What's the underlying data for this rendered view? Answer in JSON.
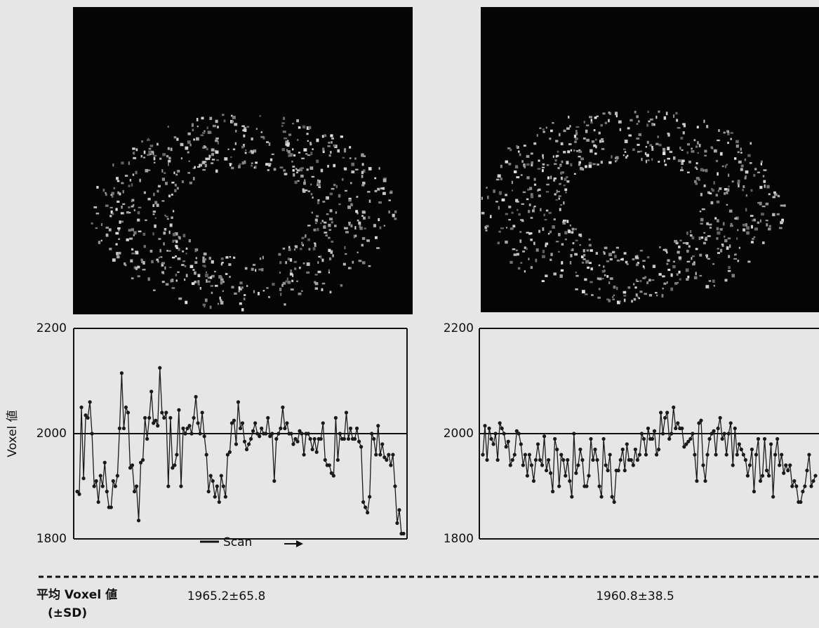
{
  "chart_data": [
    {
      "type": "line",
      "y_label": "Voxel 値",
      "x_label": "Scan",
      "annotation": "1965.2±65.8",
      "ylim": [
        1800,
        2200
      ],
      "yticks": [
        1800,
        2000,
        2200
      ],
      "grid": true,
      "color": "#1a1a1a",
      "values": [
        1890,
        1885,
        2050,
        1915,
        2035,
        2030,
        2060,
        2000,
        1900,
        1910,
        1870,
        1920,
        1900,
        1945,
        1890,
        1860,
        1860,
        1910,
        1900,
        1920,
        2010,
        2115,
        2010,
        2050,
        2040,
        1935,
        1940,
        1890,
        1900,
        1835,
        1945,
        1950,
        2030,
        1990,
        2030,
        2080,
        2020,
        2025,
        2015,
        2125,
        2040,
        2030,
        2040,
        1900,
        2030,
        1935,
        1940,
        1960,
        2045,
        1900,
        2010,
        2000,
        2010,
        2015,
        2000,
        2030,
        2070,
        2020,
        2000,
        2040,
        1995,
        1960,
        1890,
        1920,
        1910,
        1880,
        1900,
        1870,
        1920,
        1900,
        1880,
        1960,
        1965,
        2020,
        2025,
        1980,
        2060,
        2010,
        2020,
        1985,
        1970,
        1980,
        1990,
        2005,
        2020,
        2000,
        1995,
        2010,
        2000,
        2000,
        2030,
        1995,
        2000,
        1910,
        1990,
        2000,
        2010,
        2050,
        2010,
        2020,
        2000,
        2000,
        1980,
        1990,
        1985,
        2005,
        2000,
        1960,
        2000,
        2000,
        1990,
        1970,
        1990,
        1965,
        1990,
        1990,
        2020,
        1950,
        1940,
        1940,
        1925,
        1920,
        2030,
        1950,
        2000,
        1990,
        1990,
        2040,
        1990,
        2010,
        1990,
        1990,
        2010,
        1985,
        1975,
        1870,
        1860,
        1850,
        1880,
        2000,
        1990,
        1960,
        2015,
        1960,
        1980,
        1955,
        1950,
        1960,
        1940,
        1960,
        1900,
        1830,
        1855,
        1810,
        1810
      ]
    },
    {
      "type": "line",
      "annotation": "1960.8±38.5",
      "ylim": [
        1800,
        2200
      ],
      "yticks": [
        1800,
        2000,
        2200
      ],
      "grid": true,
      "color": "#1a1a1a",
      "values": [
        1960,
        2015,
        1950,
        2010,
        1990,
        1980,
        2000,
        1950,
        2020,
        2010,
        2000,
        1975,
        1985,
        1940,
        1950,
        1960,
        2005,
        2000,
        1980,
        1940,
        1960,
        1920,
        1960,
        1940,
        1910,
        1950,
        1980,
        1950,
        1940,
        1995,
        1930,
        1950,
        1925,
        1890,
        1990,
        1970,
        1900,
        1960,
        1950,
        1920,
        1950,
        1910,
        1880,
        2000,
        1925,
        1940,
        1970,
        1950,
        1900,
        1900,
        1920,
        1990,
        1950,
        1970,
        1950,
        1900,
        1880,
        1990,
        1940,
        1930,
        1960,
        1880,
        1870,
        1930,
        1930,
        1950,
        1970,
        1930,
        1980,
        1950,
        1950,
        1940,
        1970,
        1950,
        1960,
        2000,
        1990,
        1960,
        2010,
        1990,
        1990,
        2005,
        1960,
        1970,
        2040,
        2000,
        2030,
        2040,
        1990,
        2000,
        2050,
        2010,
        2020,
        2010,
        2010,
        1975,
        1980,
        1985,
        1990,
        2000,
        1960,
        1910,
        2020,
        2025,
        1940,
        1910,
        1960,
        1990,
        2000,
        2005,
        1960,
        2010,
        2030,
        1990,
        2000,
        1960,
        2000,
        2020,
        1940,
        2010,
        1960,
        1980,
        1970,
        1960,
        1950,
        1920,
        1940,
        1970,
        1890,
        1960,
        1990,
        1910,
        1920,
        1990,
        1930,
        1920,
        1980,
        1880,
        1960,
        1990,
        1940,
        1960,
        1925,
        1940,
        1930,
        1940,
        1900,
        1910,
        1900,
        1870,
        1870,
        1890,
        1900,
        1930,
        1960,
        1900,
        1910,
        1920
      ]
    }
  ],
  "footer": {
    "label": "平均 Voxel 値",
    "sublabel": "(±SD)"
  }
}
